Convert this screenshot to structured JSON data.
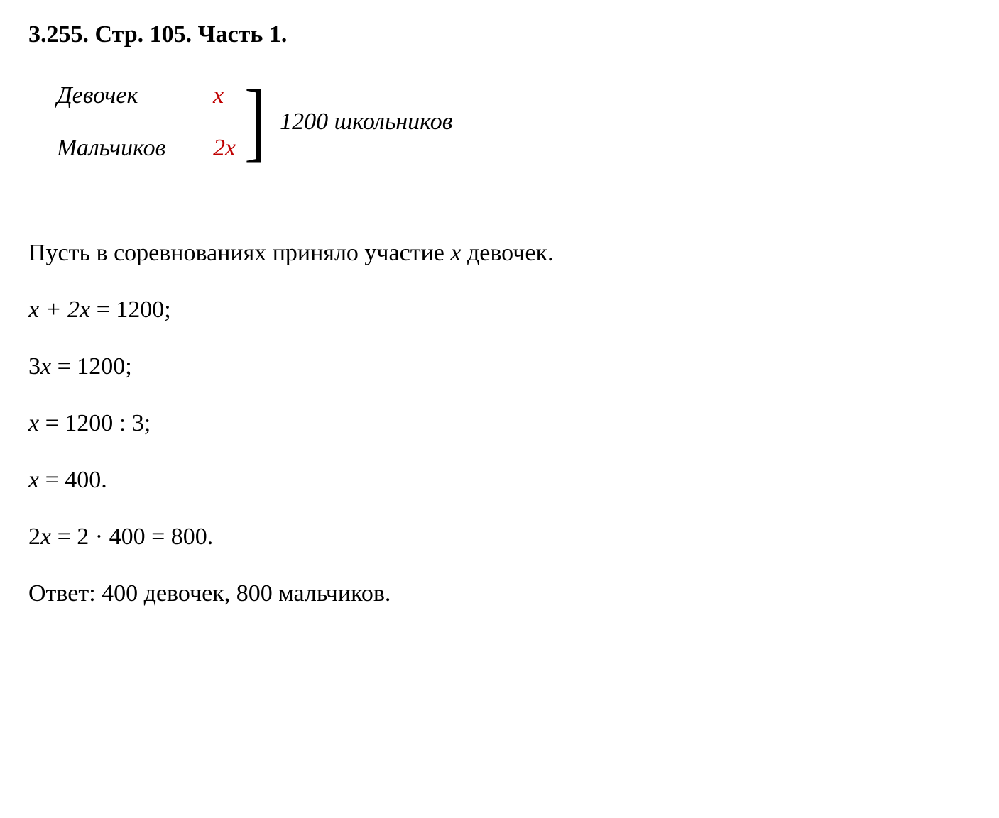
{
  "header": {
    "problem_number": "3.255.",
    "page_ref": "Стр. 105.",
    "part": "Часть 1."
  },
  "setup": {
    "rows": [
      {
        "label": "Девочек",
        "value": "x"
      },
      {
        "label": "Мальчиков",
        "value": "2x"
      }
    ],
    "bracket_total": "1200 школьников"
  },
  "solution": {
    "intro_prefix": "Пусть в соревнованиях приняло участие ",
    "intro_var": "x",
    "intro_suffix": " девочек.",
    "lines": [
      {
        "expr_italic": "x + 2x",
        "expr_rest": " = 1200;"
      },
      {
        "expr_italic": "",
        "expr_rest": "3",
        "expr_var": "x",
        "expr_tail": " = 1200;"
      },
      {
        "expr_italic": "x",
        "expr_rest": " = 1200 : 3;"
      },
      {
        "expr_italic": "x",
        "expr_rest": " = 400."
      },
      {
        "expr_italic": "",
        "expr_rest": "2",
        "expr_var": "x",
        "expr_tail": " = 2 · 400 = 800."
      }
    ],
    "answer_label": "Ответ:",
    "answer_text": " 400 девочек, 800 мальчиков."
  },
  "styles": {
    "text_color": "#000000",
    "accent_color": "#c00000",
    "background_color": "#ffffff",
    "font_family": "Times New Roman",
    "header_fontsize": 34,
    "body_fontsize": 34
  }
}
